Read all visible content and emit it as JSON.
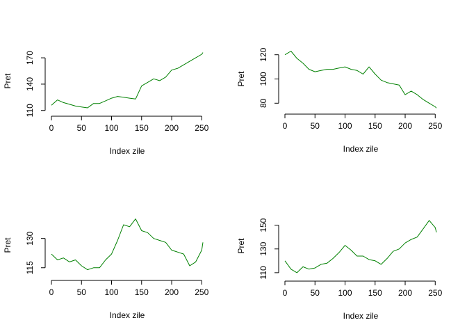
{
  "colors": {
    "series": "#008000",
    "axis": "#000000",
    "background": "#ffffff"
  },
  "chart_data": [
    {
      "type": "line",
      "xlabel": "Index zile",
      "ylabel": "Pret",
      "xlim": [
        0,
        252
      ],
      "ylim": [
        109,
        178
      ],
      "xticks": [
        0,
        50,
        100,
        150,
        200,
        250
      ],
      "yticks": [
        110,
        140,
        170
      ],
      "grid": false,
      "series": [
        {
          "x": [
            0,
            10,
            20,
            30,
            40,
            50,
            60,
            70,
            80,
            90,
            100,
            110,
            120,
            130,
            140,
            150,
            160,
            170,
            180,
            190,
            200,
            210,
            220,
            230,
            240,
            250,
            252
          ],
          "values": [
            116,
            122,
            119,
            117,
            115,
            114,
            113,
            118,
            118,
            121,
            124,
            126,
            125,
            124,
            123,
            138,
            142,
            146,
            144,
            148,
            156,
            158,
            162,
            166,
            170,
            174,
            176
          ]
        }
      ]
    },
    {
      "type": "line",
      "xlabel": "Index zile",
      "ylabel": "Pret",
      "xlim": [
        0,
        252
      ],
      "ylim": [
        75,
        125
      ],
      "xticks": [
        0,
        50,
        100,
        150,
        200,
        250
      ],
      "yticks": [
        80,
        100,
        120
      ],
      "grid": false,
      "series": [
        {
          "x": [
            0,
            10,
            20,
            30,
            40,
            50,
            60,
            70,
            80,
            90,
            100,
            110,
            120,
            130,
            140,
            150,
            160,
            170,
            180,
            190,
            200,
            210,
            220,
            230,
            240,
            250,
            252
          ],
          "values": [
            120,
            123,
            117,
            113,
            108,
            106,
            107,
            108,
            108,
            109,
            110,
            108,
            107,
            104,
            110,
            104,
            99,
            97,
            96,
            95,
            87,
            90,
            87,
            83,
            80,
            77,
            76
          ]
        }
      ]
    },
    {
      "type": "line",
      "xlabel": "Index zile",
      "ylabel": "Pret",
      "xlim": [
        0,
        252
      ],
      "ylim": [
        111,
        142
      ],
      "xticks": [
        0,
        50,
        100,
        150,
        200,
        250
      ],
      "yticks": [
        115,
        130
      ],
      "grid": false,
      "series": [
        {
          "x": [
            0,
            10,
            20,
            30,
            40,
            50,
            60,
            70,
            80,
            90,
            100,
            110,
            120,
            130,
            140,
            150,
            160,
            170,
            180,
            190,
            200,
            210,
            220,
            230,
            240,
            250,
            252
          ],
          "values": [
            122,
            119,
            120,
            118,
            119,
            116,
            114,
            115,
            115,
            119,
            122,
            129,
            137,
            136,
            140,
            134,
            133,
            130,
            129,
            128,
            124,
            123,
            122,
            116,
            118,
            124,
            128
          ]
        }
      ]
    },
    {
      "type": "line",
      "xlabel": "Index zile",
      "ylabel": "Pret",
      "xlim": [
        0,
        252
      ],
      "ylim": [
        107,
        158
      ],
      "xticks": [
        0,
        50,
        100,
        150,
        200,
        250
      ],
      "yticks": [
        110,
        130,
        150
      ],
      "grid": false,
      "series": [
        {
          "x": [
            0,
            10,
            20,
            30,
            40,
            50,
            60,
            70,
            80,
            90,
            100,
            110,
            120,
            130,
            140,
            150,
            160,
            170,
            180,
            190,
            200,
            210,
            220,
            230,
            240,
            250,
            252
          ],
          "values": [
            120,
            113,
            110,
            115,
            113,
            114,
            117,
            118,
            122,
            127,
            133,
            129,
            124,
            124,
            121,
            120,
            117,
            122,
            128,
            130,
            135,
            138,
            140,
            147,
            154,
            148,
            144
          ]
        }
      ]
    }
  ]
}
